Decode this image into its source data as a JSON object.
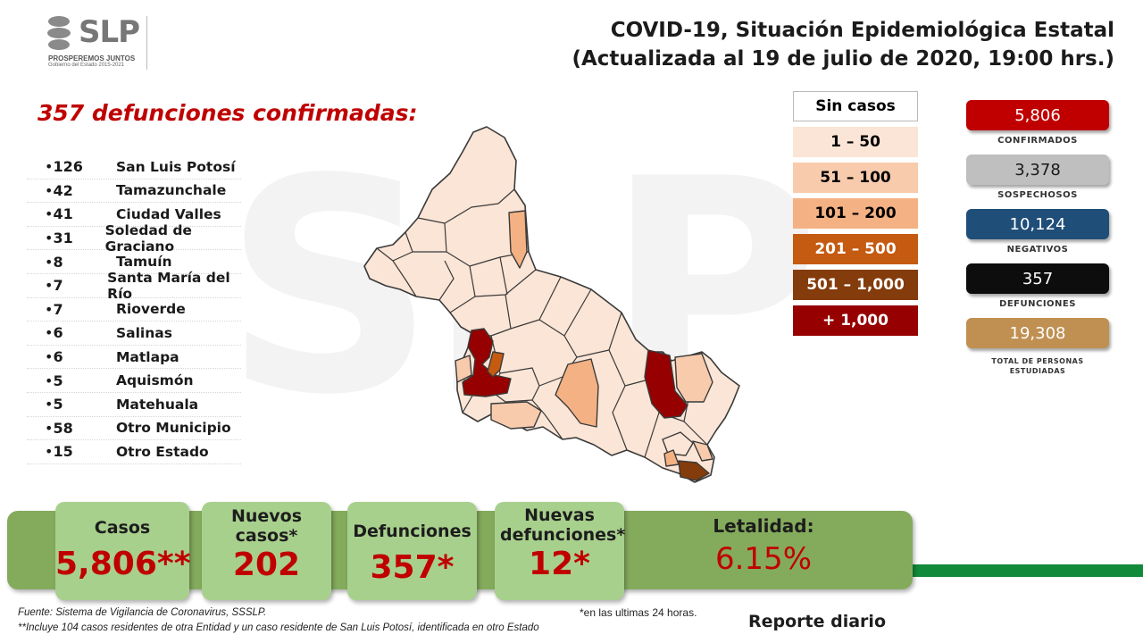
{
  "watermark": "SLP",
  "logo": {
    "brand": "SLP",
    "subtitle": "PROSPEREMOS JUNTOS",
    "period": "Gobierno del Estado 2015-2021"
  },
  "title": {
    "line1": "COVID-19, Situación Epidemiológica Estatal",
    "line2": "(Actualizada al 19 de julio de 2020, 19:00 hrs.)"
  },
  "deaths_heading": "357 defunciones confirmadas:",
  "municipalities": [
    {
      "count": "126",
      "name": "San Luis Potosí"
    },
    {
      "count": "42",
      "name": "Tamazunchale"
    },
    {
      "count": "41",
      "name": "Ciudad Valles"
    },
    {
      "count": "31",
      "name": "Soledad de Graciano"
    },
    {
      "count": "8",
      "name": "Tamuín"
    },
    {
      "count": "7",
      "name": "Santa María del Río"
    },
    {
      "count": "7",
      "name": "Rioverde"
    },
    {
      "count": "6",
      "name": "Salinas"
    },
    {
      "count": "6",
      "name": "Matlapa"
    },
    {
      "count": "5",
      "name": "Aquismón"
    },
    {
      "count": "5",
      "name": "Matehuala"
    },
    {
      "count": "58",
      "name": "Otro Municipio"
    },
    {
      "count": "15",
      "name": "Otro Estado"
    }
  ],
  "legend": [
    {
      "label": "Sin casos",
      "color": "#ffffff",
      "text_color": "#000000"
    },
    {
      "label": "1 – 50",
      "color": "#fbe5d6",
      "text_color": "#000000"
    },
    {
      "label": "51 – 100",
      "color": "#f8cbad",
      "text_color": "#000000"
    },
    {
      "label": "101 – 200",
      "color": "#f4b183",
      "text_color": "#000000"
    },
    {
      "label": "201 – 500",
      "color": "#c55a11",
      "text_color": "#ffffff"
    },
    {
      "label": "501 – 1,000",
      "color": "#843c0c",
      "text_color": "#ffffff"
    },
    {
      "label": "+ 1,000",
      "color": "#960000",
      "text_color": "#ffffff"
    }
  ],
  "stats": [
    {
      "value": "5,806",
      "label": "CONFIRMADOS",
      "color": "#c00000"
    },
    {
      "value": "3,378",
      "label": "SOSPECHOSOS",
      "color": "#bfbfbf",
      "text_color": "#1a1a1a"
    },
    {
      "value": "10,124",
      "label": "NEGATIVOS",
      "color": "#1f4e79"
    },
    {
      "value": "357",
      "label": "DEFUNCIONES",
      "color": "#0d0d0d"
    },
    {
      "value": "19,308",
      "label": "TOTAL DE PERSONAS ESTUDIADAS",
      "color": "#c09052"
    }
  ],
  "summary": {
    "casos_label": "Casos",
    "casos_value": "5,806**",
    "nuevos_casos_label": "Nuevos casos*",
    "nuevos_casos_value": "202",
    "defunciones_label": "Defunciones",
    "defunciones_value": "357*",
    "nuevas_defunciones_label": "Nuevas defunciones*",
    "nuevas_defunciones_value": "12*",
    "letalidad_label": "Letalidad:",
    "letalidad_value": "6.15%"
  },
  "footer": {
    "source": "Fuente: Sistema de Vigilancia de Coronavirus, SSSLP.",
    "note": "**Incluye 104 casos residentes de otra Entidad y un caso residente de San Luis Potosí, identificada en otro Estado",
    "last24": "*en las ultimas 24 horas.",
    "report": "Reporte diario"
  },
  "colors": {
    "accent": "#c00000",
    "band": "#84ab5c",
    "card": "#a8d08d",
    "stripe": "#118a3a"
  }
}
